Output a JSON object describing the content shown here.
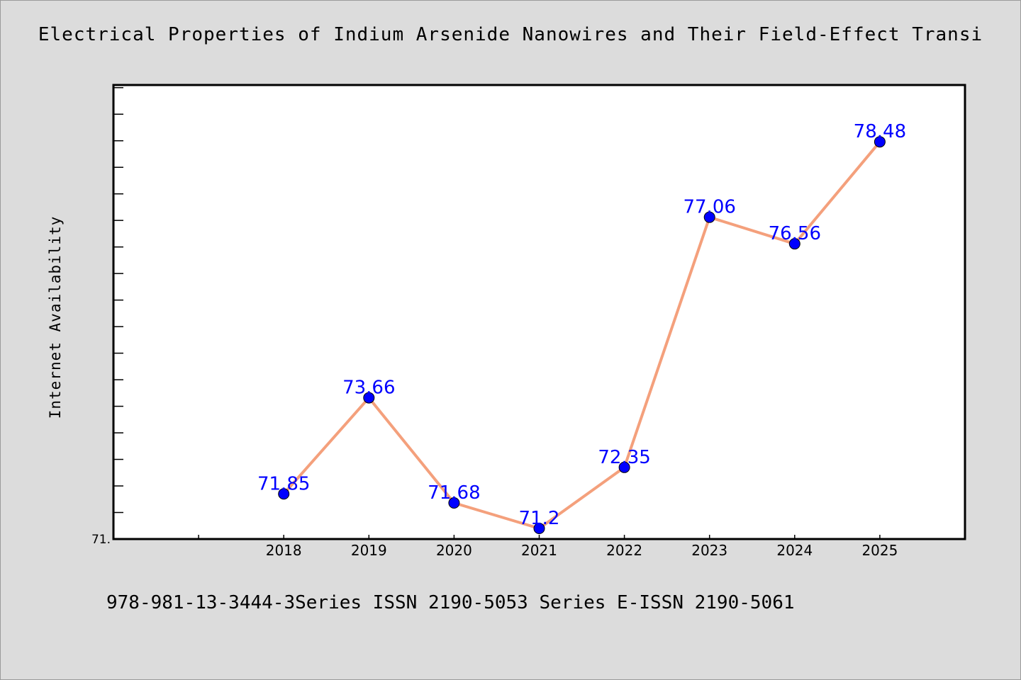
{
  "header": {
    "title": "Electrical Properties of Indium Arsenide Nanowires and Their Field-Effect Transi"
  },
  "footer": {
    "text": "978-981-13-3444-3Series ISSN 2190-5053 Series E-ISSN 2190-5061"
  },
  "colors": {
    "background": "#dcdcdc",
    "plot_area": "#ffffff",
    "line": "#f4a07c",
    "marker": "#0000ff",
    "data_label": "#0000ff"
  },
  "chart_data": {
    "type": "line",
    "title": "Electrical Properties of Indium Arsenide Nanowires and Their Field-Effect Transi",
    "xlabel": "",
    "ylabel": "Internet Availability",
    "categories": [
      "2018",
      "2019",
      "2020",
      "2021",
      "2022",
      "2023",
      "2024",
      "2025"
    ],
    "x_slots": 10,
    "x_first_category_slot": 2,
    "series": [
      {
        "values": [
          71.85,
          73.66,
          71.68,
          71.2,
          72.35,
          77.06,
          76.56,
          78.48
        ],
        "labels": [
          "71.85",
          "73.66",
          "71.68",
          "71.2",
          "72.35",
          "77.06",
          "76.56",
          "78.48"
        ],
        "marker": "circle"
      }
    ],
    "ylim": [
      71.0,
      79.55
    ],
    "y_tick_labels": [
      {
        "value": 71.0,
        "label": "71."
      }
    ],
    "y_minor_step": 0.5,
    "grid": false,
    "legend": "none"
  }
}
